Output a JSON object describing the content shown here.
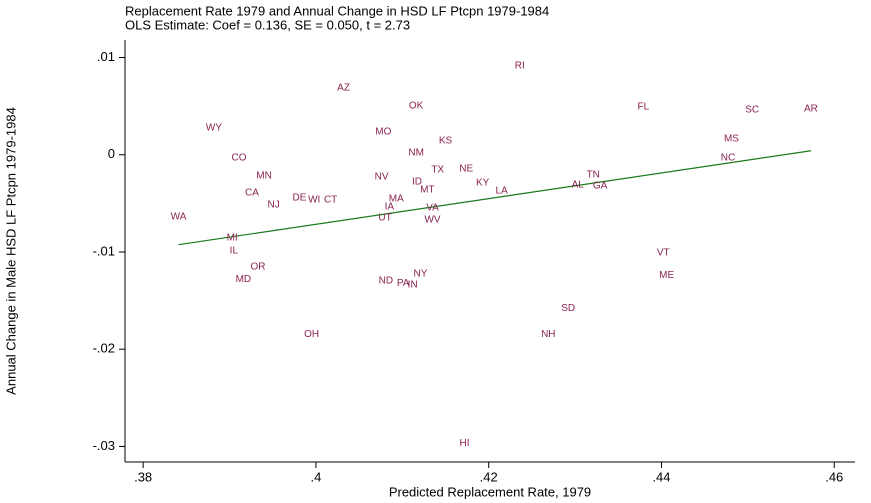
{
  "chart_data": {
    "type": "scatter",
    "title": "Replacement Rate 1979 and Annual Change in HSD LF Ptcpn 1979-1984",
    "subtitle": "OLS Estimate: Coef = 0.136, SE = 0.050, t = 2.73",
    "x_label": "Predicted Replacement Rate, 1979",
    "y_label": "Annual Change in Male HSD LF Ptcpn 1979-1984",
    "xlim": [
      0.3779,
      0.4624
    ],
    "ylim": [
      -0.0316,
      0.0118
    ],
    "xticks": [
      {
        "value": 0.38,
        "label": ".38"
      },
      {
        "value": 0.4,
        "label": ".4"
      },
      {
        "value": 0.42,
        "label": ".42"
      },
      {
        "value": 0.44,
        "label": ".44"
      },
      {
        "value": 0.46,
        "label": ".46"
      }
    ],
    "yticks": [
      {
        "value": 0.01,
        "label": ".01"
      },
      0,
      {
        "value": -0.01,
        "label": "-.01"
      },
      {
        "value": -0.02,
        "label": "-.02"
      },
      {
        "value": -0.03,
        "label": "-.03"
      }
    ],
    "label_color": "#8b2252",
    "labels": [
      "RI",
      "AZ",
      "OK",
      "FL",
      "SC",
      "AR",
      "WY",
      "MO",
      "KS",
      "MS",
      "NM",
      "CO",
      "NC",
      "MN",
      "NV",
      "TX",
      "NE",
      "TN",
      "ID",
      "KY",
      "AL",
      "GA",
      "MT",
      "LA",
      "CA",
      "DE",
      "WI",
      "CT",
      "MA",
      "NJ",
      "IA",
      "VA",
      "WA",
      "UT",
      "WV",
      "MI",
      "IL",
      "VT",
      "OR",
      "NY",
      "ME",
      "MD",
      "ND",
      "PA",
      "IN",
      "SD",
      "NH",
      "OH",
      "HI"
    ],
    "x": [
      0.4236,
      0.4032,
      0.4116,
      0.4379,
      0.4505,
      0.4573,
      0.3882,
      0.4078,
      0.415,
      0.4481,
      0.4116,
      0.3911,
      0.4477,
      0.394,
      0.4076,
      0.4141,
      0.4174,
      0.4321,
      0.4117,
      0.4193,
      0.4303,
      0.4329,
      0.4129,
      0.4215,
      0.3926,
      0.3981,
      0.3998,
      0.4017,
      0.4093,
      0.3951,
      0.4085,
      0.4135,
      0.3841,
      0.408,
      0.4135,
      0.3903,
      0.3905,
      0.4402,
      0.3933,
      0.4121,
      0.4406,
      0.3916,
      0.4081,
      0.4101,
      0.4112,
      0.4292,
      0.4269,
      0.3995,
      0.4172
    ],
    "y": [
      0.00914,
      0.00688,
      0.00503,
      0.00493,
      0.00462,
      0.00473,
      0.00277,
      0.00236,
      0.00144,
      0.00164,
      0.00021,
      -0.00031,
      -0.00031,
      -0.00216,
      -0.00226,
      -0.00154,
      -0.00144,
      -0.00205,
      -0.00277,
      -0.00288,
      -0.00308,
      -0.00318,
      -0.0036,
      -0.0037,
      -0.0039,
      -0.00442,
      -0.00462,
      -0.00462,
      -0.00452,
      -0.00514,
      -0.00534,
      -0.00545,
      -0.00637,
      -0.00647,
      -0.00668,
      -0.00853,
      -0.00986,
      -0.01007,
      -0.01151,
      -0.01223,
      -0.01243,
      -0.01284,
      -0.01295,
      -0.01325,
      -0.01336,
      -0.01582,
      -0.01849,
      -0.01849,
      -0.02969
    ],
    "fit_line": {
      "color": "#1a7a1a",
      "x": [
        0.3841,
        0.4573
      ],
      "y": [
        -0.00925,
        0.00041
      ]
    }
  }
}
